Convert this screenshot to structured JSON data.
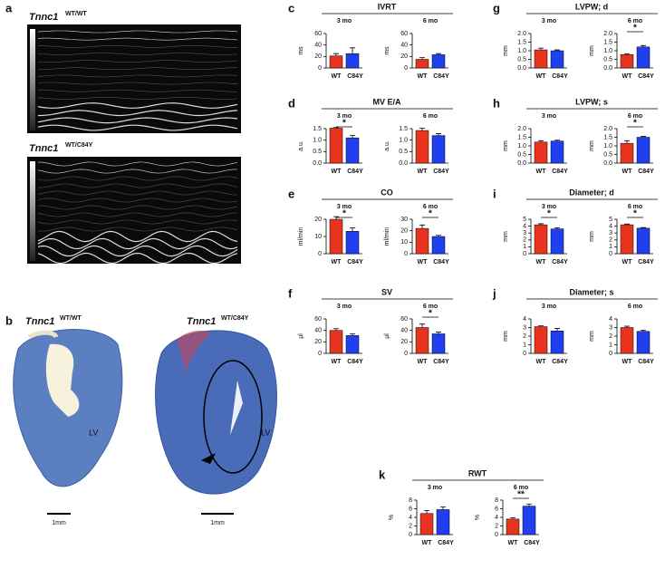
{
  "panels": {
    "a": "a",
    "b": "b"
  },
  "echo": [
    {
      "gene": "Tnnc1",
      "genotype": "WT/WT"
    },
    {
      "gene": "Tnnc1",
      "genotype": "WT/C84Y"
    }
  ],
  "histology": [
    {
      "gene": "Tnnc1",
      "genotype": "WT/WT",
      "region": "LV",
      "scale": "1mm"
    },
    {
      "gene": "Tnnc1",
      "genotype": "WT/C84Y",
      "region": "LV",
      "scale": "1mm"
    }
  ],
  "chart_data": [
    {
      "type": "bar",
      "letter": "c",
      "title": "IVRT",
      "ylabel": "ms",
      "colors": [
        "#e8341f",
        "#2040f0"
      ],
      "subplots": [
        {
          "period": "3 mo",
          "categories": [
            "WT",
            "C84Y"
          ],
          "values": [
            21,
            25
          ],
          "errors": [
            4,
            10
          ],
          "ylim": [
            0,
            60
          ],
          "yticks": [
            0,
            20,
            40,
            60
          ]
        },
        {
          "period": "6 mo",
          "categories": [
            "WT",
            "C84Y"
          ],
          "values": [
            15,
            23
          ],
          "errors": [
            3,
            2
          ],
          "ylim": [
            0,
            60
          ],
          "yticks": [
            0,
            20,
            40,
            60
          ]
        }
      ]
    },
    {
      "type": "bar",
      "letter": "d",
      "title": "MV E/A",
      "ylabel": "a.u.",
      "colors": [
        "#e8341f",
        "#2040f0"
      ],
      "subplots": [
        {
          "period": "3 mo",
          "categories": [
            "WT",
            "C84Y"
          ],
          "values": [
            1.52,
            1.1
          ],
          "errors": [
            0.03,
            0.1
          ],
          "sig": "*",
          "ylim": [
            0,
            1.5
          ],
          "yticks": [
            {
              "value": 0,
              "label": "0.0"
            },
            0.5,
            {
              "value": 1,
              "label": "1.0"
            },
            1.5
          ]
        },
        {
          "period": "6 mo",
          "categories": [
            "WT",
            "C84Y"
          ],
          "values": [
            1.42,
            1.2
          ],
          "errors": [
            0.1,
            0.08
          ],
          "ylim": [
            0,
            1.5
          ],
          "yticks": [
            {
              "value": 0,
              "label": "0.0"
            },
            0.5,
            {
              "value": 1,
              "label": "1.0"
            },
            1.5
          ]
        }
      ]
    },
    {
      "type": "bar",
      "letter": "e",
      "title": "CO",
      "ylabel": "ml/min",
      "colors": [
        "#e8341f",
        "#2040f0"
      ],
      "subplots": [
        {
          "period": "3 mo",
          "categories": [
            "WT",
            "C84Y"
          ],
          "values": [
            20,
            13
          ],
          "errors": [
            1.5,
            2
          ],
          "sig": "*",
          "ylim": [
            0,
            20
          ],
          "yticks": [
            0,
            10,
            20
          ]
        },
        {
          "period": "6 mo",
          "categories": [
            "WT",
            "C84Y"
          ],
          "values": [
            22,
            15
          ],
          "errors": [
            3,
            1
          ],
          "sig": "*",
          "ylim": [
            0,
            30
          ],
          "yticks": [
            0,
            10,
            20,
            30
          ]
        }
      ]
    },
    {
      "type": "bar",
      "letter": "f",
      "title": "SV",
      "ylabel": "µl",
      "colors": [
        "#e8341f",
        "#2040f0"
      ],
      "subplots": [
        {
          "period": "3 mo",
          "categories": [
            "WT",
            "C84Y"
          ],
          "values": [
            40,
            31
          ],
          "errors": [
            3,
            3
          ],
          "ylim": [
            0,
            60
          ],
          "yticks": [
            0,
            20,
            40,
            60
          ]
        },
        {
          "period": "6 mo",
          "categories": [
            "WT",
            "C84Y"
          ],
          "values": [
            45,
            34
          ],
          "errors": [
            6,
            3
          ],
          "sig": "*",
          "ylim": [
            0,
            60
          ],
          "yticks": [
            0,
            20,
            40,
            60
          ]
        }
      ]
    },
    {
      "type": "bar",
      "letter": "g",
      "title": "LVPW; d",
      "ylabel": "mm",
      "colors": [
        "#e8341f",
        "#2040f0"
      ],
      "subplots": [
        {
          "period": "3 mo",
          "categories": [
            "WT",
            "C84Y"
          ],
          "values": [
            1.05,
            1.0
          ],
          "errors": [
            0.1,
            0.05
          ],
          "ylim": [
            0,
            2
          ],
          "yticks": [
            {
              "value": 0,
              "label": "0.0"
            },
            0.5,
            {
              "value": 1,
              "label": "1.0"
            },
            1.5,
            {
              "value": 2,
              "label": "2.0"
            }
          ]
        },
        {
          "period": "6 mo",
          "categories": [
            "WT",
            "C84Y"
          ],
          "values": [
            0.78,
            1.22
          ],
          "errors": [
            0.05,
            0.08
          ],
          "sig": "*",
          "ylim": [
            0,
            2
          ],
          "yticks": [
            {
              "value": 0,
              "label": "0.0"
            },
            0.5,
            {
              "value": 1,
              "label": "1.0"
            },
            1.5,
            {
              "value": 2,
              "label": "2.0"
            }
          ]
        }
      ]
    },
    {
      "type": "bar",
      "letter": "h",
      "title": "LVPW; s",
      "ylabel": "mm",
      "colors": [
        "#e8341f",
        "#2040f0"
      ],
      "subplots": [
        {
          "period": "3 mo",
          "categories": [
            "WT",
            "C84Y"
          ],
          "values": [
            1.22,
            1.28
          ],
          "errors": [
            0.08,
            0.05
          ],
          "ylim": [
            0,
            2
          ],
          "yticks": [
            {
              "value": 0,
              "label": "0.0"
            },
            0.5,
            {
              "value": 1,
              "label": "1.0"
            },
            1.5,
            {
              "value": 2,
              "label": "2.0"
            }
          ]
        },
        {
          "period": "6 mo",
          "categories": [
            "WT",
            "C84Y"
          ],
          "values": [
            1.15,
            1.5
          ],
          "errors": [
            0.15,
            0.05
          ],
          "sig": "*",
          "ylim": [
            0,
            2
          ],
          "yticks": [
            {
              "value": 0,
              "label": "0.0"
            },
            0.5,
            {
              "value": 1,
              "label": "1.0"
            },
            1.5,
            {
              "value": 2,
              "label": "2.0"
            }
          ]
        }
      ]
    },
    {
      "type": "bar",
      "letter": "i",
      "title": "Diameter; d",
      "ylabel": "mm",
      "colors": [
        "#e8341f",
        "#2040f0"
      ],
      "subplots": [
        {
          "period": "3 mo",
          "categories": [
            "WT",
            "C84Y"
          ],
          "values": [
            4.2,
            3.6
          ],
          "errors": [
            0.15,
            0.15
          ],
          "sig": "*",
          "ylim": [
            0,
            5
          ],
          "yticks": [
            0,
            1,
            2,
            3,
            4,
            5
          ]
        },
        {
          "period": "6 mo",
          "categories": [
            "WT",
            "C84Y"
          ],
          "values": [
            4.2,
            3.7
          ],
          "errors": [
            0.1,
            0.1
          ],
          "sig": "*",
          "ylim": [
            0,
            5
          ],
          "yticks": [
            0,
            1,
            2,
            3,
            4,
            5
          ]
        }
      ]
    },
    {
      "type": "bar",
      "letter": "j",
      "title": "Diameter; s",
      "ylabel": "mm",
      "colors": [
        "#e8341f",
        "#2040f0"
      ],
      "subplots": [
        {
          "period": "3 mo",
          "categories": [
            "WT",
            "C84Y"
          ],
          "values": [
            3.1,
            2.6
          ],
          "errors": [
            0.1,
            0.3
          ],
          "ylim": [
            0,
            4
          ],
          "yticks": [
            0,
            1,
            2,
            3,
            4
          ]
        },
        {
          "period": "6 mo",
          "categories": [
            "WT",
            "C84Y"
          ],
          "values": [
            3.0,
            2.55
          ],
          "errors": [
            0.15,
            0.15
          ],
          "ylim": [
            0,
            4
          ],
          "yticks": [
            0,
            1,
            2,
            3,
            4
          ]
        }
      ]
    },
    {
      "type": "bar",
      "letter": "k",
      "title": "RWT",
      "ylabel": "%",
      "colors": [
        "#e8341f",
        "#2040f0"
      ],
      "subplots": [
        {
          "period": "3 mo",
          "categories": [
            "WT",
            "C84Y"
          ],
          "values": [
            4.9,
            5.8
          ],
          "errors": [
            0.7,
            0.6
          ],
          "ylim": [
            0,
            8
          ],
          "yticks": [
            0,
            2,
            4,
            6,
            8
          ]
        },
        {
          "period": "6 mo",
          "categories": [
            "WT",
            "C84Y"
          ],
          "values": [
            3.6,
            6.6
          ],
          "errors": [
            0.3,
            0.5
          ],
          "sig": "**",
          "ylim": [
            0,
            8
          ],
          "yticks": [
            0,
            2,
            4,
            6,
            8
          ]
        }
      ]
    }
  ]
}
